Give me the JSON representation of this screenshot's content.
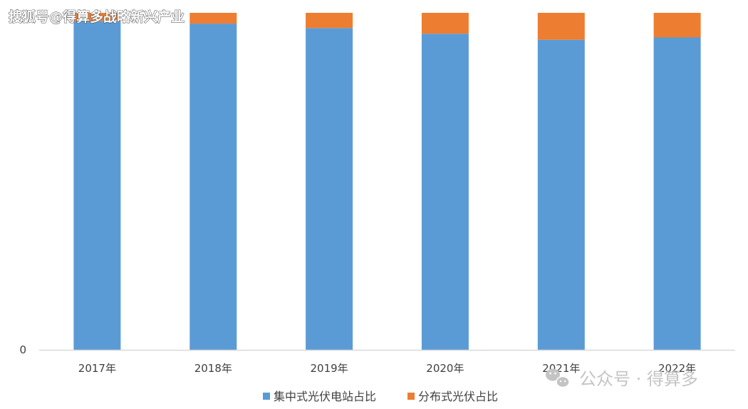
{
  "chart_data": {
    "type": "bar",
    "stacked": true,
    "categories": [
      "2017年",
      "2018年",
      "2019年",
      "2020年",
      "2021年",
      "2022年"
    ],
    "series": [
      {
        "name": "集中式光伏电站占比",
        "color": "#5b9bd5",
        "values": [
          0.975,
          0.968,
          0.955,
          0.938,
          0.92,
          0.927
        ]
      },
      {
        "name": "分布式光伏占比",
        "color": "#ed7d31",
        "values": [
          0.025,
          0.032,
          0.045,
          0.062,
          0.08,
          0.073
        ]
      }
    ],
    "y_tick_labels": [
      "0"
    ],
    "ylim": [
      0,
      1
    ],
    "grid": false,
    "legend_position": "bottom"
  },
  "watermarks": {
    "top_left": "搜狐号@得算多战略新兴产业",
    "bottom_right": "公众号 · 得算多"
  }
}
